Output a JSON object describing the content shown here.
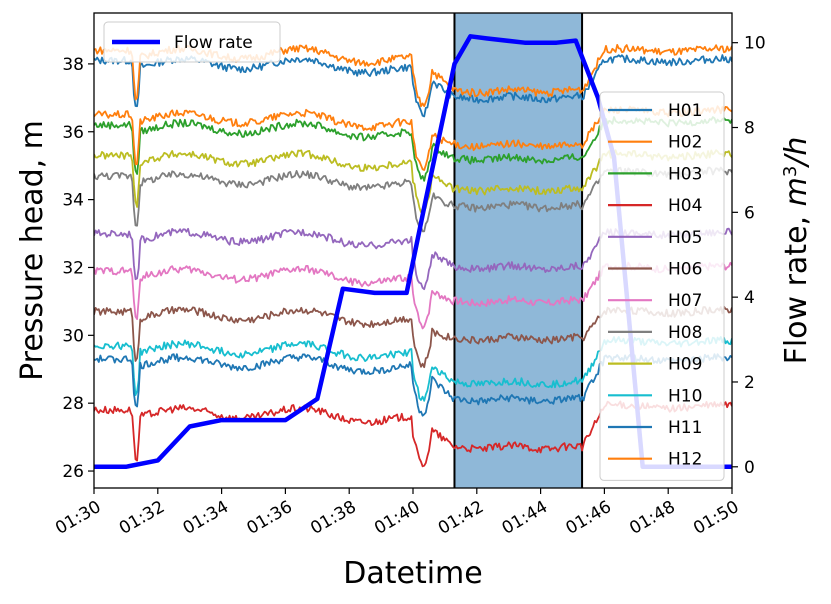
{
  "chart_data": {
    "type": "line",
    "xlabel": "Datetime",
    "ylabel_left": "Pressure head, m",
    "ylabel_right_prefix": "Flow rate, ",
    "ylabel_right_math_base": "m",
    "ylabel_right_math_sup": "3",
    "ylabel_right_math_suffix": "/h",
    "x_range_minutes": [
      0,
      20
    ],
    "x_ticks": [
      {
        "minute": 0,
        "label": "01:30"
      },
      {
        "minute": 2,
        "label": "01:32"
      },
      {
        "minute": 4,
        "label": "01:34"
      },
      {
        "minute": 6,
        "label": "01:36"
      },
      {
        "minute": 8,
        "label": "01:38"
      },
      {
        "minute": 10,
        "label": "01:40"
      },
      {
        "minute": 12,
        "label": "01:42"
      },
      {
        "minute": 14,
        "label": "01:44"
      },
      {
        "minute": 16,
        "label": "01:46"
      },
      {
        "minute": 18,
        "label": "01:48"
      },
      {
        "minute": 20,
        "label": "01:50"
      }
    ],
    "y_left_range": [
      25.5,
      39.5
    ],
    "y_left_ticks": [
      {
        "value": 26,
        "label": "26"
      },
      {
        "value": 28,
        "label": "28"
      },
      {
        "value": 30,
        "label": "30"
      },
      {
        "value": 32,
        "label": "32"
      },
      {
        "value": 34,
        "label": "34"
      },
      {
        "value": 36,
        "label": "36"
      },
      {
        "value": 38,
        "label": "38"
      }
    ],
    "y_right_range": [
      -0.5,
      10.7
    ],
    "y_right_ticks": [
      {
        "value": 0,
        "label": "0"
      },
      {
        "value": 2,
        "label": "2"
      },
      {
        "value": 4,
        "label": "4"
      },
      {
        "value": 6,
        "label": "6"
      },
      {
        "value": 8,
        "label": "8"
      },
      {
        "value": 10,
        "label": "10"
      }
    ],
    "highlight_span_minutes": [
      11.3,
      15.3
    ],
    "highlight_color": "#8fb8d8",
    "flow_rate": {
      "name": "Flow rate",
      "color": "#0000ff",
      "x_minutes": [
        0,
        1,
        2,
        3,
        4,
        5,
        6,
        7,
        7.8,
        8.8,
        9.8,
        10.4,
        11.3,
        11.8,
        12.3,
        13.5,
        14.5,
        15.1,
        15.8,
        16.3,
        17.2,
        20
      ],
      "values": [
        0,
        0,
        0.15,
        0.95,
        1.1,
        1.1,
        1.1,
        1.6,
        4.2,
        4.1,
        4.1,
        6.3,
        9.5,
        10.15,
        10.1,
        10.0,
        10.0,
        10.05,
        8.7,
        7.3,
        0,
        0
      ]
    },
    "series": [
      {
        "name": "H01",
        "color": "#1f77b4",
        "values_pump_off": 38.0,
        "values_pump_on": 37.0,
        "values_after": 38.1
      },
      {
        "name": "H02",
        "color": "#ff7f0e",
        "values_pump_off": 38.3,
        "values_pump_on": 37.2,
        "values_after": 38.4
      },
      {
        "name": "H03",
        "color": "#2ca02c",
        "values_pump_off": 36.1,
        "values_pump_on": 35.2,
        "values_after": 36.3
      },
      {
        "name": "H04",
        "color": "#d62728",
        "values_pump_off": 27.7,
        "values_pump_on": 26.7,
        "values_after": 27.9
      },
      {
        "name": "H05",
        "color": "#9467bd",
        "values_pump_off": 32.9,
        "values_pump_on": 32.0,
        "values_after": 33.0
      },
      {
        "name": "H06",
        "color": "#8c564b",
        "values_pump_off": 30.6,
        "values_pump_on": 29.9,
        "values_after": 30.7
      },
      {
        "name": "H07",
        "color": "#e377c2",
        "values_pump_off": 31.8,
        "values_pump_on": 31.0,
        "values_after": 32.0
      },
      {
        "name": "H08",
        "color": "#7f7f7f",
        "values_pump_off": 34.6,
        "values_pump_on": 33.8,
        "values_after": 34.8
      },
      {
        "name": "H09",
        "color": "#bcbd22",
        "values_pump_off": 35.2,
        "values_pump_on": 34.3,
        "values_after": 35.3
      },
      {
        "name": "H10",
        "color": "#17becf",
        "values_pump_off": 29.6,
        "values_pump_on": 28.6,
        "values_after": 29.8
      },
      {
        "name": "H11",
        "color": "#1f77b4",
        "values_pump_off": 29.2,
        "values_pump_on": 28.1,
        "values_after": 29.3
      },
      {
        "name": "H12",
        "color": "#ff7f0e",
        "values_pump_off": 36.4,
        "values_pump_on": 35.6,
        "values_after": 36.6
      }
    ]
  }
}
